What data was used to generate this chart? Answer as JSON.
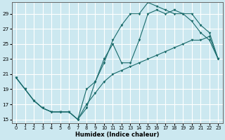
{
  "title": "",
  "xlabel": "Humidex (Indice chaleur)",
  "bg_color": "#cce8f0",
  "grid_color": "#ffffff",
  "line_color": "#1a6b6b",
  "xlim": [
    -0.5,
    23.5
  ],
  "ylim": [
    14.5,
    30.5
  ],
  "xticks": [
    0,
    1,
    2,
    3,
    4,
    5,
    6,
    7,
    8,
    9,
    10,
    11,
    12,
    13,
    14,
    15,
    16,
    17,
    18,
    19,
    20,
    21,
    22,
    23
  ],
  "yticks": [
    15,
    17,
    19,
    21,
    23,
    25,
    27,
    29
  ],
  "line1_x": [
    0,
    1,
    2,
    3,
    4,
    5,
    6,
    7,
    8,
    9,
    10,
    11,
    12,
    13,
    14,
    15,
    16,
    17,
    18,
    19,
    20,
    21,
    22,
    23
  ],
  "line1_y": [
    20.5,
    19.0,
    17.5,
    16.5,
    16.0,
    16.0,
    16.0,
    15.0,
    16.5,
    20.0,
    22.5,
    25.5,
    27.5,
    29.0,
    29.0,
    30.5,
    30.0,
    29.5,
    29.0,
    29.0,
    28.0,
    26.5,
    25.5,
    23.0
  ],
  "line2_x": [
    0,
    1,
    2,
    3,
    4,
    5,
    6,
    7,
    8,
    9,
    10,
    11,
    12,
    13,
    14,
    15,
    16,
    17,
    18,
    19,
    20,
    21,
    22,
    23
  ],
  "line2_y": [
    20.5,
    19.0,
    17.5,
    16.5,
    16.0,
    16.0,
    16.0,
    15.0,
    19.0,
    20.0,
    23.0,
    25.0,
    22.5,
    22.5,
    25.5,
    29.0,
    29.5,
    29.0,
    29.5,
    29.0,
    29.0,
    27.5,
    26.5,
    23.0
  ],
  "line3_x": [
    0,
    1,
    2,
    3,
    4,
    5,
    6,
    7,
    8,
    9,
    10,
    11,
    12,
    13,
    14,
    15,
    16,
    17,
    18,
    19,
    20,
    21,
    22,
    23
  ],
  "line3_y": [
    20.5,
    19.0,
    17.5,
    16.5,
    16.0,
    16.0,
    16.0,
    15.0,
    17.0,
    18.5,
    20.0,
    21.0,
    21.5,
    22.0,
    22.5,
    23.0,
    23.5,
    24.0,
    24.5,
    25.0,
    25.5,
    25.5,
    26.0,
    23.0
  ]
}
